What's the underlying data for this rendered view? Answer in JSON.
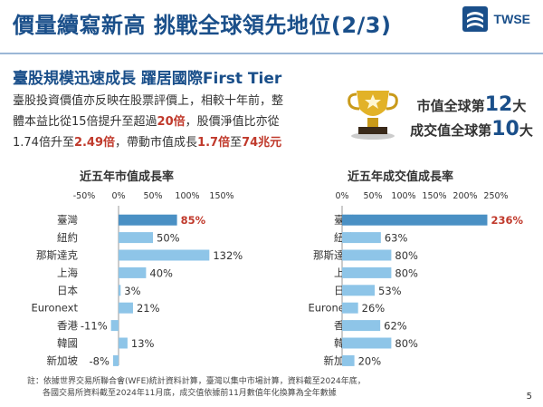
{
  "header": {
    "title": "價量續寫新高 挑戰全球領先地位(2/3)",
    "logo_text": "TWSE"
  },
  "subtitle": "臺股規模迅速成長 躍居國際First Tier",
  "body": {
    "line1": "臺股投資價值亦反映在股票評價上，相較十年前，整",
    "line2_a": "體本益比從15倍提升至超過",
    "line2_hl": "20倍",
    "line2_b": "，股價淨值比亦從",
    "line3_a": "1.74倍升至",
    "line3_hl1": "2.49倍",
    "line3_b": "，帶動市值成長",
    "line3_hl2": "1.7倍",
    "line3_c": "至",
    "line3_hl3": "74兆元"
  },
  "ranks": {
    "r1_prefix": "市值全球第",
    "r1_num": "12",
    "r1_suffix": "大",
    "r2_prefix": "成交值全球第",
    "r2_num": "10",
    "r2_suffix": "大"
  },
  "colors": {
    "brand": "#1a4f8a",
    "highlight": "#c0392b",
    "bar_main": "#4a90c4",
    "bar_other": "#8ec5e8"
  },
  "chart_data": [
    {
      "type": "bar",
      "orientation": "horizontal",
      "title": "近五年市值成長率",
      "categories": [
        "臺灣",
        "紐約",
        "那斯達克",
        "上海",
        "日本",
        "Euronext",
        "香港",
        "韓國",
        "新加坡"
      ],
      "values": [
        85,
        50,
        132,
        40,
        3,
        21,
        -11,
        13,
        -8
      ],
      "value_labels": [
        "85%",
        "50%",
        "132%",
        "40%",
        "3%",
        "21%",
        "-11%",
        "13%",
        "-8%"
      ],
      "ticks": [
        "-50%",
        "0%",
        "50%",
        "100%",
        "150%"
      ],
      "xlim": [
        -50,
        150
      ]
    },
    {
      "type": "bar",
      "orientation": "horizontal",
      "title": "近五年成交值成長率",
      "categories": [
        "臺灣",
        "紐約",
        "那斯達克",
        "上海",
        "日本",
        "Euronext",
        "香港",
        "韓國",
        "新加坡"
      ],
      "values": [
        236,
        63,
        80,
        80,
        53,
        26,
        62,
        80,
        20
      ],
      "value_labels": [
        "236%",
        "63%",
        "80%",
        "80%",
        "53%",
        "26%",
        "62%",
        "80%",
        "20%"
      ],
      "ticks": [
        "0%",
        "50%",
        "100%",
        "150%",
        "200%",
        "250%"
      ],
      "xlim": [
        0,
        250
      ]
    }
  ],
  "footnote": {
    "line1": "註：依據世界交易所聯合會(WFE)統計資料計算，臺灣以集中市場計算，資料截至2024年底，",
    "line2": "各國交易所資料截至2024年11月底，成交值依據前11月數值年化換算為全年數據"
  },
  "page_number": "5"
}
